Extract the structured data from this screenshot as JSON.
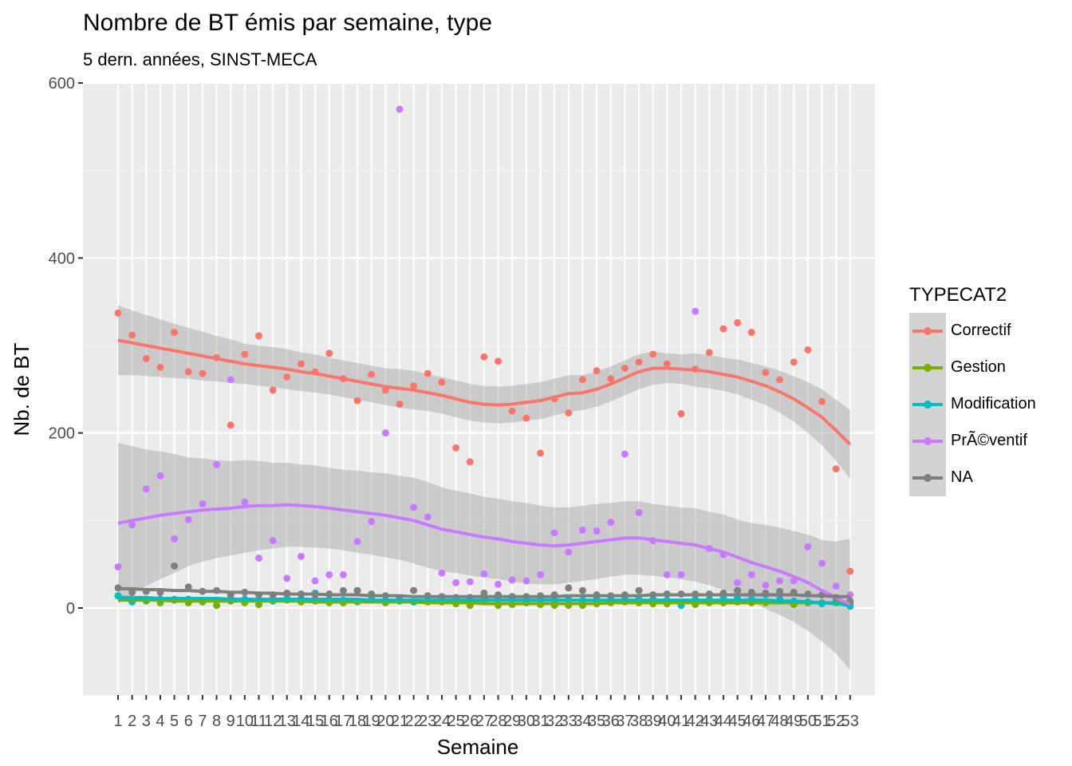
{
  "chart_data": {
    "type": "scatter",
    "title": "Nombre de BT émis par semaine, type",
    "subtitle": "5 dern. années, SINST-MECA",
    "xlabel": "Semaine",
    "ylabel": "Nb. de BT",
    "ylim": [
      -100,
      600
    ],
    "yticks": [
      0,
      200,
      400,
      600
    ],
    "categories": [
      "1",
      "2",
      "3",
      "4",
      "5",
      "6",
      "7",
      "8",
      "9",
      "10",
      "11",
      "12",
      "13",
      "14",
      "15",
      "16",
      "17",
      "18",
      "19",
      "20",
      "21",
      "22",
      "23",
      "24",
      "25",
      "26",
      "27",
      "28",
      "29",
      "30",
      "31",
      "32",
      "33",
      "34",
      "35",
      "36",
      "37",
      "38",
      "39",
      "40",
      "41",
      "42",
      "43",
      "44",
      "45",
      "46",
      "47",
      "48",
      "49",
      "50",
      "51",
      "52",
      "53"
    ],
    "grid": true,
    "legend": {
      "title": "TYPECAT2",
      "placement": "right"
    },
    "series": [
      {
        "name": "Correctif",
        "color": "#f8766d",
        "values": [
          337,
          312,
          285,
          275,
          315,
          270,
          268,
          286,
          209,
          290,
          311,
          249,
          264,
          279,
          270,
          291,
          262,
          237,
          267,
          249,
          233,
          254,
          268,
          258,
          183,
          167,
          287,
          282,
          225,
          217,
          177,
          239,
          223,
          261,
          271,
          262,
          274,
          281,
          290,
          279,
          222,
          273,
          292,
          319,
          326,
          315,
          269,
          261,
          281,
          295,
          236,
          159,
          42
        ],
        "smooth": [
          306,
          303,
          300,
          297,
          294,
          291,
          288,
          285,
          282,
          279,
          277,
          275,
          273,
          270,
          268,
          265,
          262,
          259,
          256,
          253,
          251,
          249,
          246,
          243,
          239,
          235,
          233,
          232,
          233,
          235,
          237,
          241,
          245,
          246,
          250,
          256,
          263,
          270,
          274,
          274,
          273,
          272,
          270,
          267,
          264,
          259,
          254,
          247,
          239,
          229,
          218,
          203,
          187
        ],
        "band_low": [
          266,
          266,
          265,
          264,
          263,
          262,
          260,
          259,
          257,
          256,
          254,
          252,
          250,
          248,
          246,
          244,
          241,
          238,
          235,
          232,
          229,
          227,
          225,
          222,
          218,
          214,
          212,
          211,
          212,
          214,
          216,
          220,
          224,
          226,
          230,
          236,
          243,
          250,
          255,
          257,
          256,
          253,
          251,
          248,
          244,
          238,
          232,
          223,
          213,
          200,
          186,
          168,
          148
        ],
        "band_high": [
          346,
          340,
          335,
          330,
          325,
          320,
          316,
          311,
          307,
          302,
          300,
          298,
          296,
          292,
          290,
          286,
          283,
          280,
          277,
          274,
          273,
          271,
          267,
          264,
          260,
          256,
          254,
          253,
          254,
          256,
          258,
          262,
          266,
          266,
          270,
          276,
          283,
          290,
          293,
          291,
          290,
          291,
          289,
          286,
          284,
          280,
          276,
          271,
          265,
          258,
          250,
          238,
          226
        ]
      },
      {
        "name": "Gestion",
        "color": "#7cae00",
        "values": [
          14,
          10,
          8,
          6,
          10,
          6,
          7,
          3,
          8,
          6,
          4,
          8,
          9,
          7,
          8,
          6,
          6,
          7,
          9,
          6,
          8,
          7,
          7,
          7,
          5,
          3,
          7,
          3,
          4,
          6,
          4,
          3,
          3,
          3,
          5,
          6,
          7,
          6,
          5,
          5,
          6,
          4,
          6,
          6,
          7,
          6,
          6,
          8,
          4,
          6,
          6,
          6,
          5
        ],
        "smooth": [
          9,
          9,
          9,
          9,
          8,
          8,
          8,
          8,
          8,
          8,
          8,
          8,
          8,
          8,
          7,
          7,
          7,
          7,
          7,
          7,
          7,
          7,
          6,
          6,
          6,
          6,
          5,
          5,
          5,
          5,
          5,
          5,
          5,
          5,
          5,
          6,
          6,
          6,
          6,
          6,
          6,
          6,
          6,
          6,
          6,
          6,
          6,
          6,
          6,
          6,
          6,
          6,
          6
        ]
      },
      {
        "name": "Modification",
        "color": "#00bfc4",
        "values": [
          14,
          7,
          10,
          10,
          9,
          10,
          9,
          9,
          11,
          10,
          9,
          8,
          11,
          11,
          17,
          10,
          9,
          8,
          10,
          8,
          8,
          7,
          9,
          8,
          9,
          10,
          11,
          10,
          10,
          9,
          10,
          9,
          10,
          9,
          10,
          10,
          10,
          10,
          10,
          9,
          3,
          10,
          10,
          11,
          12,
          10,
          15,
          10,
          8,
          7,
          5,
          7,
          2
        ],
        "smooth": [
          12,
          12,
          12,
          11,
          11,
          11,
          11,
          11,
          10,
          10,
          10,
          10,
          10,
          10,
          10,
          10,
          10,
          10,
          9,
          9,
          9,
          9,
          9,
          9,
          9,
          9,
          9,
          9,
          9,
          9,
          9,
          9,
          9,
          9,
          9,
          9,
          9,
          9,
          9,
          9,
          9,
          9,
          9,
          9,
          9,
          9,
          9,
          8,
          8,
          7,
          6,
          5,
          3
        ]
      },
      {
        "name": "PrÃ©ventif",
        "color": "#c77cff",
        "values": [
          47,
          95,
          136,
          151,
          79,
          101,
          119,
          164,
          261,
          121,
          57,
          77,
          34,
          59,
          31,
          38,
          38,
          76,
          99,
          200,
          570,
          115,
          104,
          40,
          29,
          30,
          39,
          27,
          32,
          31,
          38,
          86,
          64,
          89,
          88,
          98,
          176,
          109,
          77,
          38,
          38,
          339,
          68,
          61,
          29,
          38,
          26,
          31,
          31,
          70,
          51,
          25,
          15
        ],
        "smooth": [
          97,
          100,
          103,
          106,
          108,
          110,
          112,
          113,
          114,
          116,
          117,
          117,
          118,
          117,
          116,
          114,
          112,
          110,
          108,
          106,
          103,
          100,
          95,
          90,
          87,
          84,
          81,
          79,
          76,
          74,
          72,
          71,
          72,
          74,
          76,
          78,
          80,
          80,
          78,
          76,
          74,
          72,
          68,
          64,
          58,
          52,
          47,
          42,
          36,
          29,
          20,
          12,
          4
        ],
        "band_low": [
          5,
          15,
          25,
          33,
          40,
          48,
          53,
          57,
          60,
          63,
          66,
          68,
          70,
          70,
          69,
          68,
          66,
          63,
          61,
          58,
          55,
          51,
          46,
          42,
          40,
          37,
          35,
          33,
          30,
          28,
          27,
          27,
          29,
          31,
          33,
          36,
          38,
          38,
          37,
          35,
          33,
          30,
          26,
          21,
          15,
          7,
          -1,
          -8,
          -16,
          -26,
          -38,
          -52,
          -71
        ],
        "band_high": [
          189,
          185,
          181,
          179,
          176,
          172,
          171,
          169,
          168,
          169,
          168,
          166,
          166,
          164,
          163,
          160,
          158,
          157,
          155,
          154,
          151,
          149,
          144,
          138,
          134,
          131,
          127,
          125,
          122,
          120,
          117,
          115,
          115,
          117,
          119,
          120,
          122,
          122,
          119,
          117,
          115,
          114,
          110,
          107,
          101,
          97,
          95,
          92,
          88,
          84,
          78,
          76,
          79
        ]
      },
      {
        "name": "NA",
        "color": "#7f7f7f",
        "values": [
          23,
          18,
          19,
          18,
          48,
          24,
          19,
          20,
          15,
          18,
          15,
          15,
          17,
          16,
          15,
          16,
          20,
          20,
          16,
          14,
          11,
          20,
          14,
          13,
          12,
          12,
          17,
          15,
          13,
          13,
          14,
          15,
          23,
          20,
          15,
          14,
          15,
          20,
          15,
          16,
          16,
          16,
          16,
          17,
          20,
          18,
          17,
          19,
          18,
          16,
          15,
          12,
          8
        ],
        "smooth": [
          22,
          22,
          21,
          21,
          20,
          20,
          19,
          19,
          18,
          18,
          17,
          17,
          16,
          16,
          16,
          15,
          15,
          15,
          14,
          14,
          14,
          13,
          13,
          13,
          13,
          13,
          13,
          13,
          13,
          13,
          13,
          13,
          14,
          14,
          14,
          14,
          14,
          14,
          15,
          15,
          15,
          15,
          15,
          15,
          15,
          15,
          15,
          15,
          15,
          14,
          14,
          13,
          13
        ]
      }
    ]
  }
}
